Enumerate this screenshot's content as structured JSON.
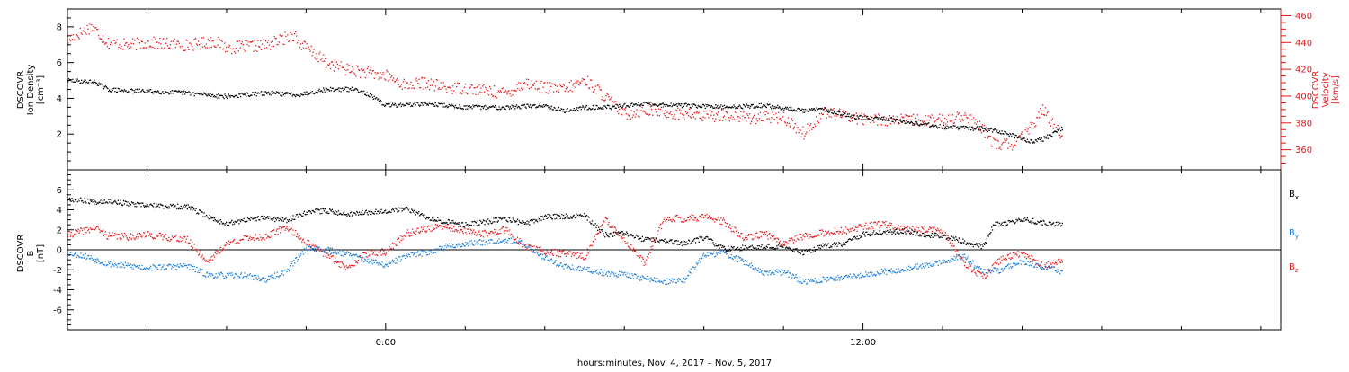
{
  "footer": {
    "xlabel": "hours:minutes, Nov.  4, 2017 – Nov.  5, 2017"
  },
  "chart_data": [
    {
      "type": "scatter",
      "panel": "density-velocity",
      "ylabel_lines": [
        "DSCOVR",
        "Ion Density",
        "[cm⁻³]"
      ],
      "y2label_lines": [
        "DSCOVR",
        "Velocity",
        "[km/s]"
      ],
      "x_ticks": [
        "0:00",
        "12:00"
      ],
      "x_range_hours": [
        -8,
        22.5
      ],
      "y_range": [
        0,
        9
      ],
      "y_ticks": [
        2,
        4,
        6,
        8
      ],
      "y2_range": [
        345,
        465
      ],
      "y2_ticks": [
        360,
        380,
        400,
        420,
        440,
        460
      ],
      "colors": {
        "density": "#000000",
        "velocity": "#e4191c"
      },
      "series": [
        {
          "axis": "left",
          "x": [
            -8,
            -7.3,
            -7,
            -6.5,
            -6,
            -5,
            -4,
            -3,
            -2.2,
            -1.5,
            -0.8,
            -0.6,
            0,
            1,
            2,
            3,
            4,
            4.5,
            5,
            5.6,
            6.5,
            7.5,
            8.5,
            9.5,
            10.5,
            11,
            11.5,
            12,
            12.5,
            13,
            14,
            15,
            15.5,
            16.2,
            16.5,
            17
          ],
          "y": [
            5.0,
            4.9,
            4.5,
            4.4,
            4.4,
            4.3,
            4.1,
            4.3,
            4.2,
            4.5,
            4.5,
            4.4,
            3.6,
            3.7,
            3.5,
            3.5,
            3.6,
            3.3,
            3.5,
            3.5,
            3.7,
            3.6,
            3.5,
            3.6,
            3.3,
            3.4,
            3.1,
            2.9,
            2.9,
            2.7,
            2.4,
            2.3,
            2.1,
            1.6,
            1.7,
            2.3
          ]
        },
        {
          "axis": "right",
          "x": [
            -8,
            -7.4,
            -7,
            -6.5,
            -6,
            -5,
            -4.3,
            -4,
            -3,
            -2.3,
            -2.2,
            -1.5,
            -1,
            0,
            0.5,
            1,
            1.5,
            2,
            3,
            3.5,
            4,
            4.5,
            5,
            5.5,
            6,
            6.5,
            7,
            8,
            8.5,
            9,
            10,
            10.5,
            11,
            12,
            13,
            14,
            14.5,
            15,
            15.3,
            15.8,
            16.2,
            16.5,
            17
          ],
          "y": [
            442,
            452,
            440,
            438,
            440,
            438,
            441,
            436,
            438,
            446,
            440,
            425,
            420,
            415,
            408,
            410,
            406,
            406,
            402,
            410,
            406,
            405,
            412,
            400,
            386,
            390,
            388,
            385,
            386,
            384,
            384,
            372,
            388,
            383,
            382,
            382,
            386,
            375,
            364,
            364,
            376,
            390,
            370
          ]
        }
      ]
    },
    {
      "type": "scatter",
      "panel": "magnetic-field",
      "ylabel_lines": [
        "DSCOVR",
        "B",
        "[nT]"
      ],
      "x_ticks": [
        "0:00",
        "12:00"
      ],
      "x_range_hours": [
        -8,
        22.5
      ],
      "y_range": [
        -8,
        8
      ],
      "y_ticks": [
        -6,
        -4,
        -2,
        0,
        2,
        4,
        6
      ],
      "zero_line": true,
      "legend": [
        "Bx",
        "By",
        "Bz"
      ],
      "colors": {
        "Bx": "#000000",
        "By": "#1a7fd9",
        "Bz": "#e4191c"
      },
      "series": [
        {
          "name": "Bx",
          "x": [
            -8,
            -7.3,
            -7,
            -6.5,
            -6,
            -5,
            -4.3,
            -4,
            -3.5,
            -3,
            -2.5,
            -2,
            -1.5,
            -1,
            0,
            0.5,
            1,
            1.5,
            2,
            2.5,
            3,
            3.5,
            4,
            5,
            5.5,
            6,
            6.5,
            7,
            7.5,
            8,
            8.5,
            9,
            9.5,
            10,
            10.5,
            11,
            11.5,
            12,
            12.5,
            13,
            13.5,
            14,
            15,
            15.3,
            15.5,
            16,
            16.5,
            17
          ],
          "y": [
            5.1,
            4.8,
            4.9,
            4.6,
            4.4,
            4.3,
            3.0,
            2.6,
            3.0,
            3.2,
            2.9,
            3.8,
            3.9,
            3.6,
            3.9,
            4.1,
            3.3,
            2.8,
            2.5,
            2.8,
            3.1,
            2.6,
            3.3,
            3.4,
            1.5,
            1.6,
            1.0,
            0.9,
            0.6,
            1.2,
            0.1,
            0.2,
            0.3,
            0.4,
            -0.3,
            0.4,
            0.6,
            1.6,
            1.7,
            1.9,
            1.5,
            1.4,
            0.3,
            2.7,
            2.5,
            3.1,
            2.7,
            2.5
          ]
        },
        {
          "name": "By",
          "x": [
            -8,
            -7.5,
            -7,
            -6.5,
            -6,
            -5,
            -4.5,
            -4,
            -3.5,
            -3,
            -2.5,
            -2,
            -1.5,
            -1,
            0,
            0.5,
            1,
            1.5,
            2,
            3,
            3.5,
            4,
            4.5,
            5,
            5.5,
            6,
            7,
            7.5,
            8,
            8.5,
            9,
            9.5,
            10,
            10.5,
            11,
            12,
            12.5,
            13,
            14,
            14.5,
            15,
            15.5,
            16,
            16.5,
            17
          ],
          "y": [
            -0.3,
            -0.7,
            -1.4,
            -1.6,
            -1.8,
            -1.6,
            -2.5,
            -2.6,
            -2.6,
            -3.0,
            -2.1,
            0.2,
            0.0,
            -0.4,
            -1.6,
            -0.6,
            -0.3,
            0.3,
            0.6,
            1.0,
            0.5,
            -0.8,
            -1.7,
            -2.0,
            -2.3,
            -2.5,
            -3.2,
            -3.0,
            -0.5,
            -0.3,
            -1.2,
            -2.4,
            -2.2,
            -3.2,
            -3.0,
            -2.5,
            -2.2,
            -2.0,
            -1.2,
            -0.6,
            -2.2,
            -2.0,
            -1.1,
            -1.7,
            -2.2
          ]
        },
        {
          "name": "Bz",
          "x": [
            -8,
            -7.3,
            -7,
            -6.5,
            -6,
            -5,
            -4.5,
            -4,
            -3.5,
            -3,
            -2.5,
            -2,
            -1.5,
            -1,
            -0.5,
            0,
            0.5,
            1,
            1.5,
            2,
            2.5,
            3,
            3.5,
            4,
            4.5,
            5,
            5.5,
            6,
            6.5,
            7,
            7.5,
            8,
            8.5,
            9,
            9.5,
            10,
            10.5,
            11,
            11.5,
            12,
            12.5,
            13,
            13.5,
            14,
            14.5,
            15,
            15.5,
            16,
            16.5,
            17
          ],
          "y": [
            1.5,
            2.2,
            1.4,
            1.3,
            1.5,
            1.0,
            -1.2,
            0.6,
            1.2,
            1.3,
            2.3,
            0.7,
            -0.5,
            -1.8,
            -0.4,
            -0.2,
            1.6,
            2.1,
            2.3,
            1.8,
            1.6,
            2.0,
            0.3,
            -0.2,
            -0.4,
            -0.7,
            3.0,
            0.9,
            -1.4,
            3.2,
            3.1,
            3.3,
            2.8,
            1.1,
            1.6,
            0.7,
            1.4,
            1.7,
            1.9,
            2.3,
            2.6,
            2.0,
            2.1,
            1.8,
            -1.2,
            -2.8,
            -0.8,
            -0.3,
            -1.6,
            -1.2
          ]
        }
      ]
    }
  ]
}
